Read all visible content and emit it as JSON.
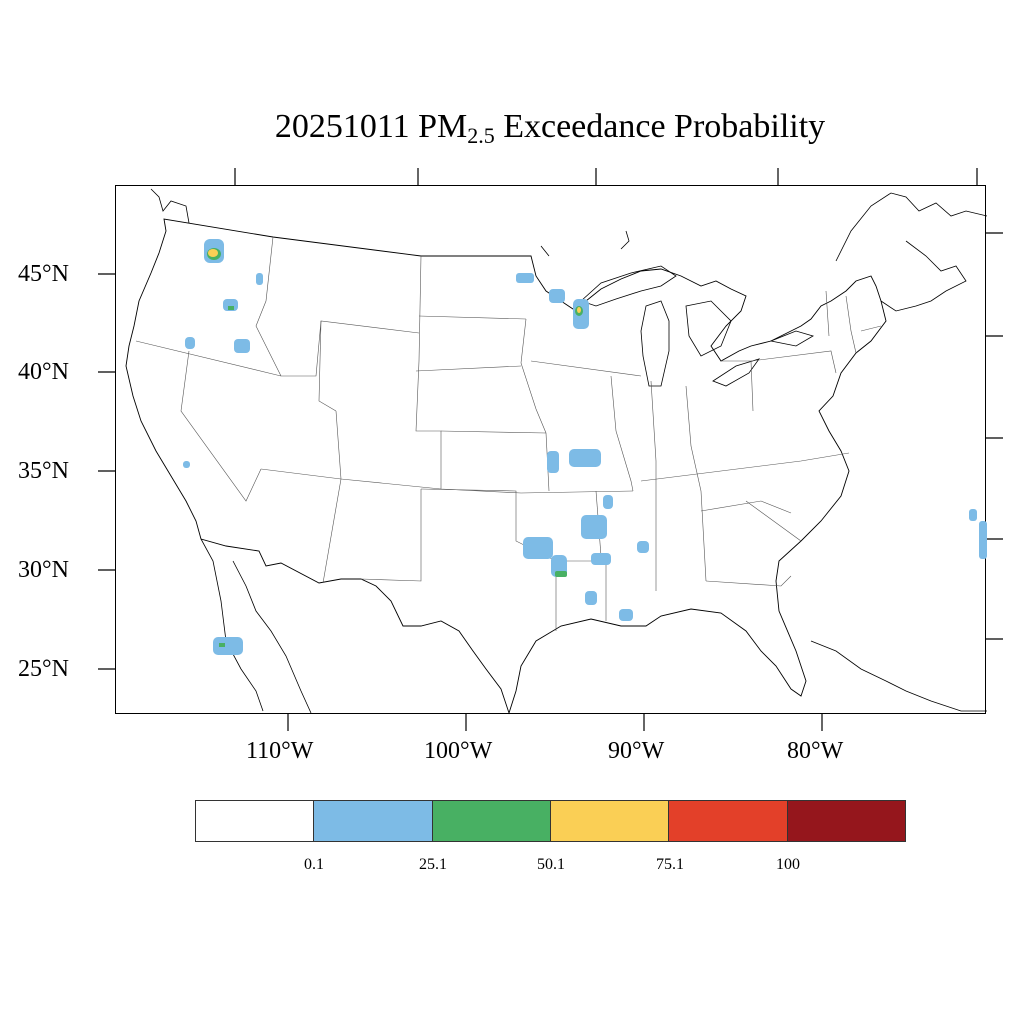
{
  "title": {
    "prefix": "20251011 PM",
    "subscript": "2.5",
    "suffix": " Exceedance Probability"
  },
  "map": {
    "lat_labels": [
      "45°N",
      "40°N",
      "35°N",
      "30°N",
      "25°N"
    ],
    "lon_labels": [
      "110°W",
      "100°W",
      "90°W",
      "80°W"
    ],
    "outline_color": "#000000",
    "state_border_color": "#555555"
  },
  "legend": {
    "colors": [
      "#ffffff",
      "#7dbbe6",
      "#48b063",
      "#facf55",
      "#e34029",
      "#95161c"
    ],
    "labels": [
      "0.1",
      "25.1",
      "50.1",
      "75.1",
      "100"
    ]
  },
  "probability_areas": [
    {
      "region": "northern-idaho",
      "level": "50.1-75.1"
    },
    {
      "region": "central-idaho",
      "level": "25.1-50.1"
    },
    {
      "region": "southwest-idaho",
      "level": "0.1-25.1"
    },
    {
      "region": "oregon",
      "level": "0.1-25.1"
    },
    {
      "region": "nevada",
      "level": "0.1-25.1"
    },
    {
      "region": "northern-minnesota",
      "level": "0.1-25.1"
    },
    {
      "region": "wisconsin",
      "level": "50.1-75.1"
    },
    {
      "region": "missouri",
      "level": "0.1-25.1"
    },
    {
      "region": "arkansas",
      "level": "0.1-25.1"
    },
    {
      "region": "east-texas",
      "level": "25.1-50.1"
    },
    {
      "region": "louisiana",
      "level": "0.1-25.1"
    },
    {
      "region": "mississippi",
      "level": "0.1-25.1"
    },
    {
      "region": "baja-california",
      "level": "0.1-25.1"
    },
    {
      "region": "atlantic-offshore",
      "level": "0.1-25.1"
    }
  ]
}
